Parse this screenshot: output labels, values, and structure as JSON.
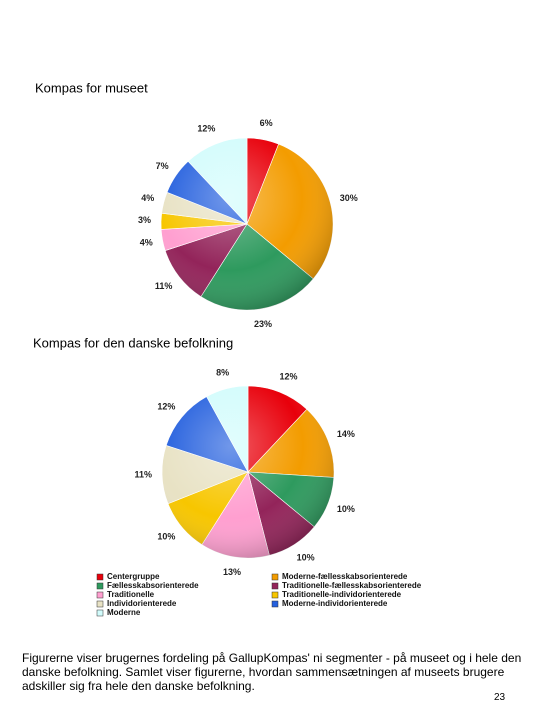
{
  "chart_data": [
    {
      "type": "pie",
      "title": "Kompas for museet",
      "values": [
        6,
        30,
        23,
        11,
        4,
        3,
        4,
        7,
        12
      ],
      "value_labels": [
        "6%",
        "30%",
        "23%",
        "11%",
        "4%",
        "3%",
        "4%",
        "7%",
        "12%"
      ],
      "colors": [
        "#e8000b",
        "#f39c00",
        "#2e9a5e",
        "#93245a",
        "#ff9fd0",
        "#f7c600",
        "#e8e2c4",
        "#2560de",
        "#d2fcfc"
      ]
    },
    {
      "type": "pie",
      "title": "Kompas for den danske befolkning",
      "values": [
        12,
        14,
        10,
        10,
        13,
        10,
        11,
        12,
        8
      ],
      "value_labels": [
        "12%",
        "14%",
        "10%",
        "10%",
        "13%",
        "10%",
        "11%",
        "12%",
        "8%"
      ],
      "colors": [
        "#e8000b",
        "#f39c00",
        "#2e9a5e",
        "#93245a",
        "#ff9fd0",
        "#f7c600",
        "#e8e2c4",
        "#2560de",
        "#d2fcfc"
      ]
    }
  ],
  "legend": {
    "items": [
      {
        "name": "Centergruppe",
        "color": "#e8000b"
      },
      {
        "name": "Fællesskabsorienterede",
        "color": "#2e9a5e"
      },
      {
        "name": "Traditionelle",
        "color": "#ff9fd0"
      },
      {
        "name": "Individorienterede",
        "color": "#e8e2c4"
      },
      {
        "name": "Moderne",
        "color": "#d2fcfc"
      },
      {
        "name": "Moderne-fællesskabsorienterede",
        "color": "#f39c00"
      },
      {
        "name": "Traditionelle-fællesskabsorienterede",
        "color": "#93245a"
      },
      {
        "name": "Traditionelle-individorienterede",
        "color": "#f7c600"
      },
      {
        "name": "Moderne-individorienterede",
        "color": "#2560de"
      }
    ]
  },
  "text": "Figurerne viser brugernes fordeling på GallupKompas' ni segmenter - på museet og i hele den danske befolkning. Samlet viser figurerne, hvordan sammensætningen af museets brugere adskiller sig fra hele den danske befolkning.",
  "page_number": 23
}
